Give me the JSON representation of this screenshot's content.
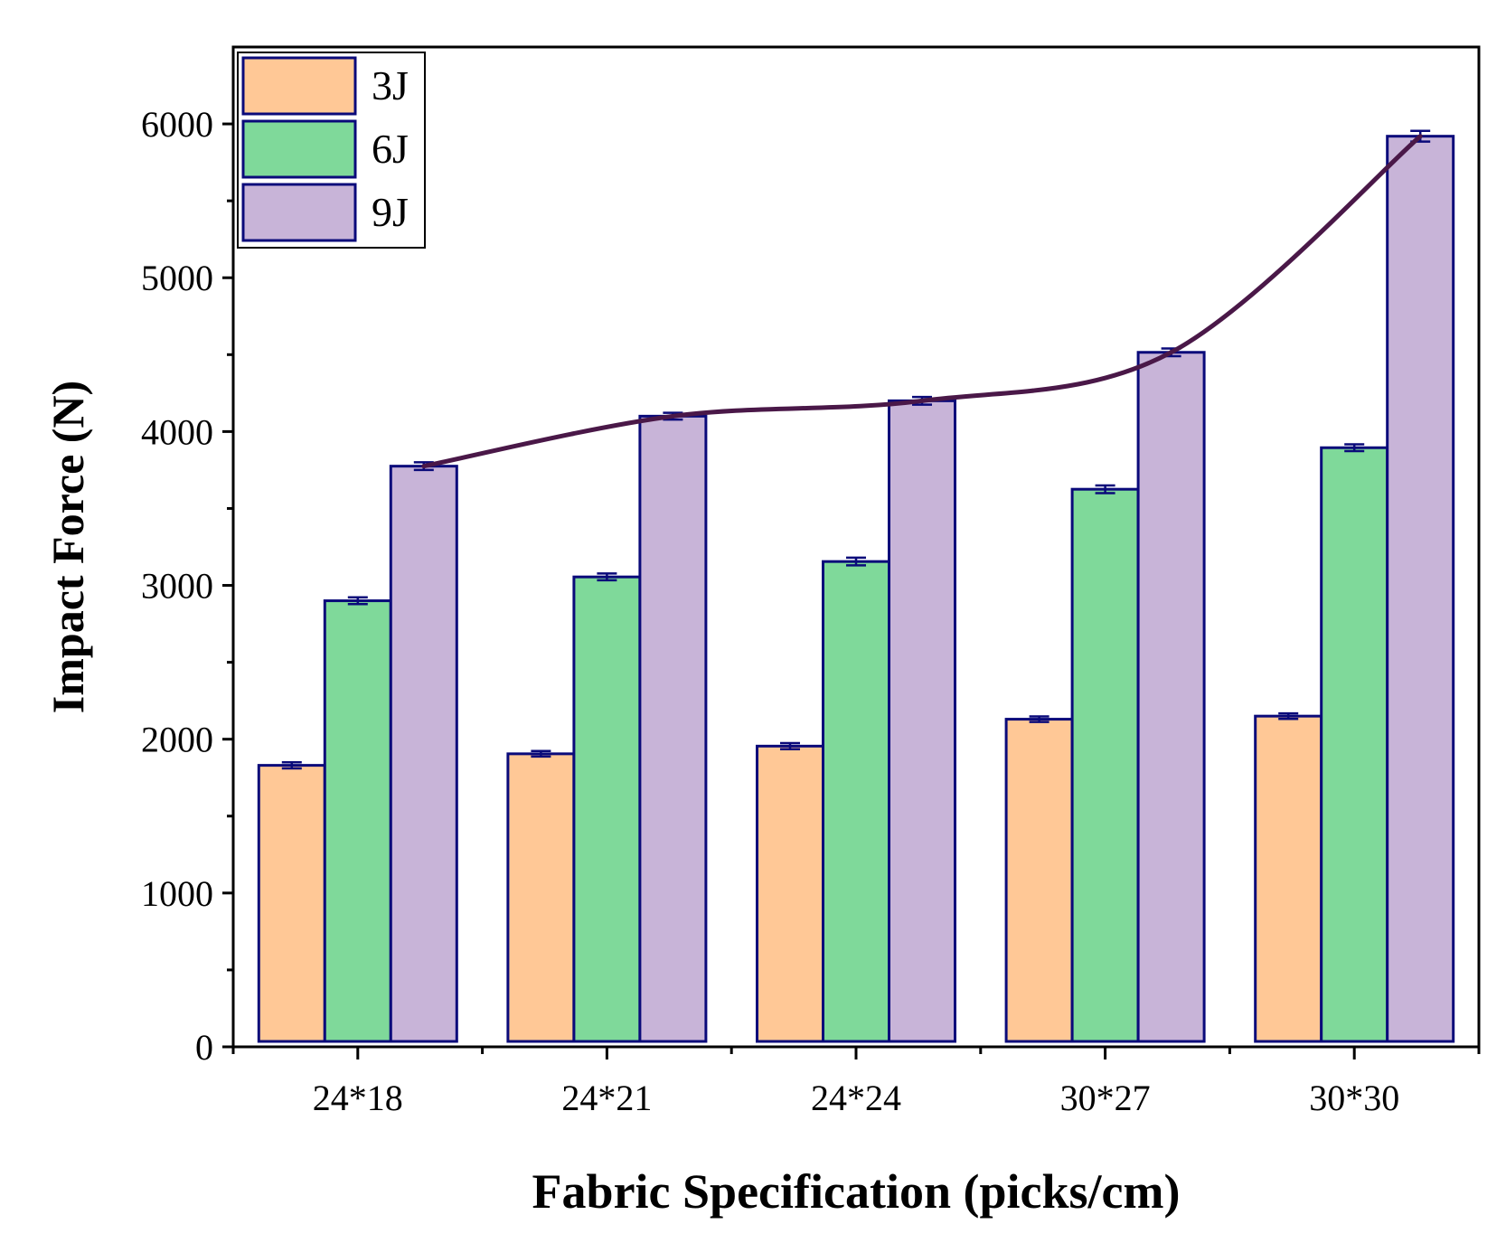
{
  "chart_data": {
    "type": "bar",
    "xlabel": "Fabric Specification (picks/cm)",
    "ylabel": "Impact Force (N)",
    "categories": [
      "24*18",
      "24*21",
      "24*24",
      "30*27",
      "30*30"
    ],
    "ylim": [
      0,
      6500
    ],
    "yticks": [
      0,
      1000,
      2000,
      3000,
      4000,
      5000,
      6000
    ],
    "legend_position": "top-left",
    "grid": false,
    "series": [
      {
        "name": "3J",
        "color": "#FFC896",
        "values": [
          1830,
          1905,
          1955,
          2130,
          2150
        ],
        "errors": [
          20,
          18,
          20,
          18,
          18
        ]
      },
      {
        "name": "6J",
        "color": "#7FD99A",
        "values": [
          2900,
          3055,
          3155,
          3625,
          3895
        ],
        "errors": [
          22,
          22,
          25,
          25,
          22
        ]
      },
      {
        "name": "9J",
        "color": "#C8B4D8",
        "values": [
          3775,
          4100,
          4200,
          4515,
          5920
        ],
        "errors": [
          25,
          22,
          25,
          25,
          35
        ]
      }
    ],
    "trend_line": {
      "series": "9J",
      "color": "#4A1848"
    },
    "bar_edge_color": "#0A0A7A"
  }
}
